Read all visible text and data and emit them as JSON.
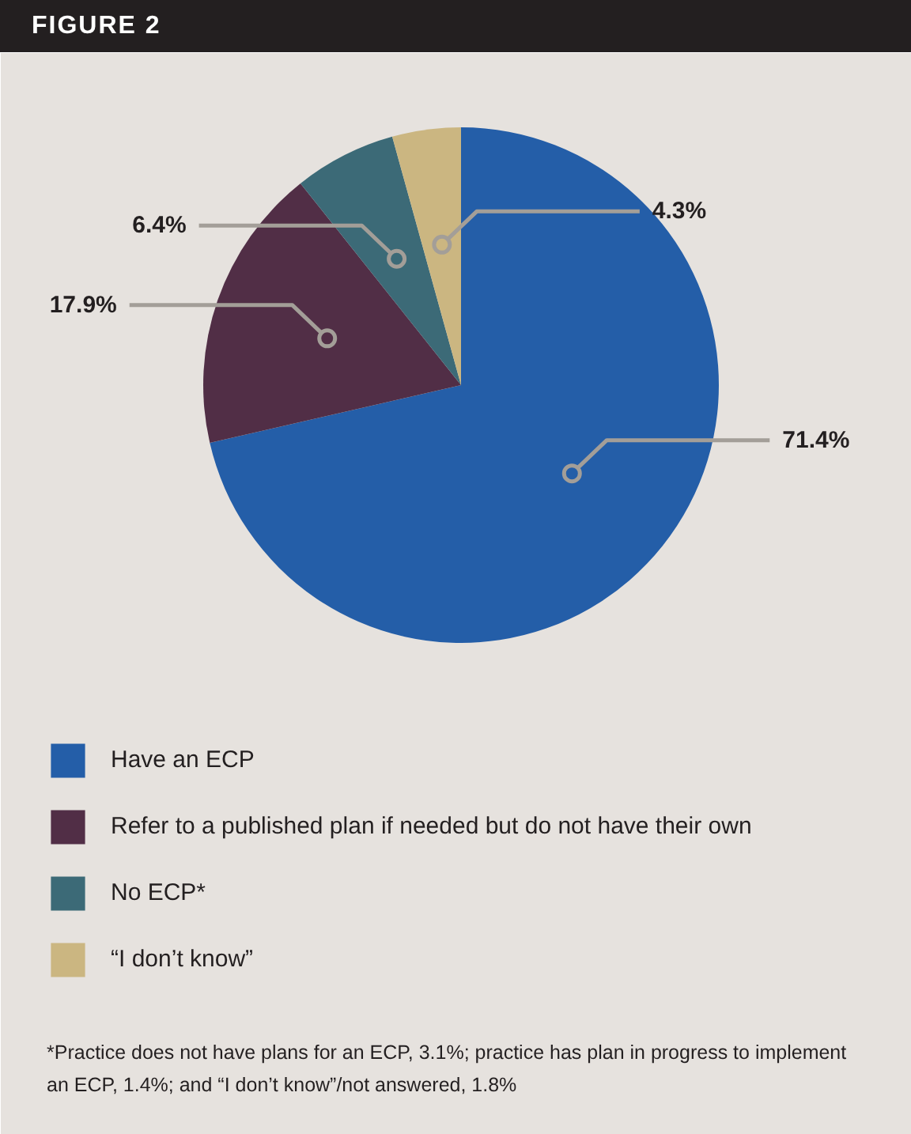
{
  "chart_data": {
    "type": "pie",
    "title": "FIGURE 2",
    "categories": [
      "Have an ECP",
      "Refer to a published plan if needed but do not have their own",
      "No ECP*",
      "“I don’t know”"
    ],
    "values": [
      71.4,
      17.9,
      6.4,
      4.3
    ],
    "value_labels": [
      "71.4%",
      "17.9%",
      "6.4%",
      "4.3%"
    ],
    "colors": [
      "#245ea8",
      "#512e46",
      "#3c6a77",
      "#cbb681"
    ],
    "legend": "bottom",
    "annotations": [
      "*Practice does not have plans for an ECP, 3.1%; practice has plan in progress to implement an ECP, 1.4%; and “I don’t know”/not answered, 1.8%"
    ]
  }
}
